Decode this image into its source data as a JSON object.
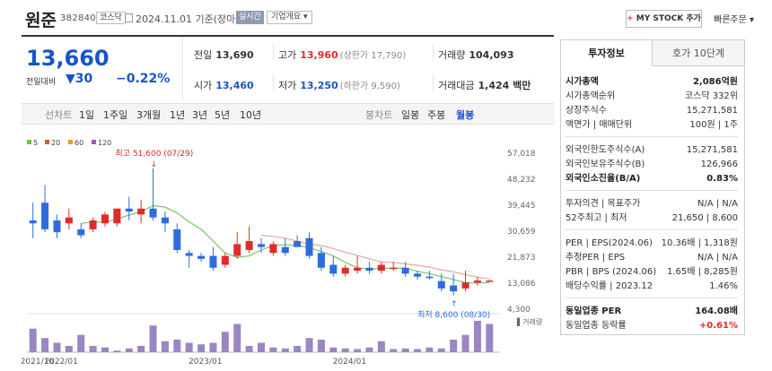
{
  "header": {
    "name": "원준",
    "code": "382840",
    "market": "코스닥",
    "date": "2024.11.01  기준(장마감)",
    "realtime": "실시간",
    "company": "기업개요",
    "mystock": "MY STOCK 추가",
    "quick_order": "빠른주문"
  },
  "price": {
    "current": "13,660",
    "diff_label": "전일대비",
    "diff_value": "▼30",
    "diff_pct": "−0.22%",
    "color": "#1855c6"
  },
  "quotes": {
    "prev_label": "전일",
    "prev": "13,690",
    "high_label": "고가",
    "high": "13,960",
    "upper": "(상한가 17,790)",
    "volume_label": "거래량",
    "volume": "104,093",
    "open_label": "시가",
    "open": "13,460",
    "low_label": "저가",
    "low": "13,250",
    "lower": "(하한가 9,590)",
    "amount_label": "거래대금",
    "amount": "1,424 백만"
  },
  "periods": {
    "line": "선차트",
    "d1": "1일",
    "w1": "1주일",
    "m3": "3개월",
    "y1": "1년",
    "y3": "3년",
    "y5": "5년",
    "y10": "10년",
    "candle": "봉차트",
    "daily": "일봉",
    "weekly": "주봉",
    "monthly": "월봉"
  },
  "tabs": {
    "invest": "투자정보",
    "hoga": "호가 10단계"
  },
  "info": {
    "mcap_label": "시가총액",
    "mcap": "2,086억원",
    "rank_label": "시가총액순위",
    "rank": "코스닥 332위",
    "shares_label": "상장주식수",
    "shares": "15,271,581",
    "face_label": "액면가 | 매매단위",
    "face": "100원 | 1주",
    "f_limit_label": "외국인한도주식수(A)",
    "f_limit": "15,271,581",
    "f_hold_label": "외국인보유주식수(B)",
    "f_hold": "126,966",
    "f_ratio_label": "외국인소진율(B/A)",
    "f_ratio": "0.83%",
    "opinion_label": "투자의견 | 목표주가",
    "opinion": "N/A | N/A",
    "w52_label": "52주최고 | 최저",
    "w52": "21,650 | 8,600",
    "per_label": "PER | EPS(2024.06)",
    "per": "10.36배 | 1,318원",
    "eper_label": "추정PER | EPS",
    "eper": "N/A | N/A",
    "pbr_label": "PBR | BPS (2024.06)",
    "pbr": "1.65배 | 8,285원",
    "div_label": "배당수익률 | 2023.12",
    "div": "1.46%",
    "ind_per_label": "동일업종 PER",
    "ind_per": "164.08배",
    "ind_chg_label": "동일업종 등락률",
    "ind_chg": "+0.61%"
  },
  "chart_data": {
    "type": "candlestick",
    "legend": [
      {
        "name": "5",
        "color": "#6cc24a"
      },
      {
        "name": "20",
        "color": "#e84c3d"
      },
      {
        "name": "60",
        "color": "#f39c12"
      },
      {
        "name": "120",
        "color": "#9b59b6"
      }
    ],
    "y_ticks": [
      "57,018",
      "48,232",
      "39,445",
      "30,659",
      "21,873",
      "13,086",
      "4,300"
    ],
    "ylim": [
      4300,
      57018
    ],
    "x_ticks": [
      {
        "label": "2021/10",
        "i": 0
      },
      {
        "label": "2022/01",
        "i": 2
      },
      {
        "label": "2023/01",
        "i": 14
      },
      {
        "label": "2024/01",
        "i": 26
      }
    ],
    "volume_label": "거래량",
    "high_note": "최고 51,600 (07/29)",
    "low_note": "최저 8,600 (08/30)",
    "candles": [
      {
        "o": 34000,
        "h": 40000,
        "l": 28000,
        "c": 33000
      },
      {
        "o": 40000,
        "h": 46000,
        "l": 30000,
        "c": 31000
      },
      {
        "o": 34000,
        "h": 36000,
        "l": 28000,
        "c": 30000
      },
      {
        "o": 33000,
        "h": 38000,
        "l": 31000,
        "c": 35000
      },
      {
        "o": 31000,
        "h": 33000,
        "l": 28000,
        "c": 29000
      },
      {
        "o": 31000,
        "h": 35000,
        "l": 30000,
        "c": 34000
      },
      {
        "o": 33000,
        "h": 37000,
        "l": 32000,
        "c": 36000
      },
      {
        "o": 33000,
        "h": 38000,
        "l": 32000,
        "c": 38000
      },
      {
        "o": 38000,
        "h": 42000,
        "l": 34000,
        "c": 37000
      },
      {
        "o": 36000,
        "h": 41000,
        "l": 33000,
        "c": 38000
      },
      {
        "o": 38000,
        "h": 51600,
        "l": 34000,
        "c": 35000
      },
      {
        "o": 35000,
        "h": 37000,
        "l": 30000,
        "c": 33000
      },
      {
        "o": 31000,
        "h": 33000,
        "l": 23000,
        "c": 24000
      },
      {
        "o": 23000,
        "h": 24000,
        "l": 18000,
        "c": 22000
      },
      {
        "o": 22000,
        "h": 23000,
        "l": 20000,
        "c": 21000
      },
      {
        "o": 22000,
        "h": 25000,
        "l": 17000,
        "c": 18000
      },
      {
        "o": 19000,
        "h": 23000,
        "l": 18000,
        "c": 22000
      },
      {
        "o": 22000,
        "h": 30000,
        "l": 21000,
        "c": 26000
      },
      {
        "o": 24000,
        "h": 32000,
        "l": 23000,
        "c": 27000
      },
      {
        "o": 26000,
        "h": 28000,
        "l": 23000,
        "c": 25000
      },
      {
        "o": 23000,
        "h": 27000,
        "l": 22000,
        "c": 26000
      },
      {
        "o": 25000,
        "h": 28000,
        "l": 22000,
        "c": 23000
      },
      {
        "o": 27000,
        "h": 29000,
        "l": 25000,
        "c": 25000
      },
      {
        "o": 28000,
        "h": 30000,
        "l": 21000,
        "c": 22000
      },
      {
        "o": 23000,
        "h": 25000,
        "l": 17000,
        "c": 18000
      },
      {
        "o": 19000,
        "h": 22000,
        "l": 15000,
        "c": 16000
      },
      {
        "o": 16000,
        "h": 19000,
        "l": 15000,
        "c": 18000
      },
      {
        "o": 17000,
        "h": 22000,
        "l": 16000,
        "c": 18000
      },
      {
        "o": 18000,
        "h": 20000,
        "l": 16000,
        "c": 17000
      },
      {
        "o": 17000,
        "h": 20000,
        "l": 16000,
        "c": 19000
      },
      {
        "o": 18000,
        "h": 20000,
        "l": 17000,
        "c": 18000
      },
      {
        "o": 18000,
        "h": 20000,
        "l": 15000,
        "c": 16000
      },
      {
        "o": 16000,
        "h": 17000,
        "l": 14000,
        "c": 15000
      },
      {
        "o": 15000,
        "h": 17000,
        "l": 14000,
        "c": 14500
      },
      {
        "o": 13500,
        "h": 16000,
        "l": 10000,
        "c": 11000
      },
      {
        "o": 12000,
        "h": 16000,
        "l": 8600,
        "c": 10000
      },
      {
        "o": 11000,
        "h": 17000,
        "l": 10000,
        "c": 13000
      },
      {
        "o": 13000,
        "h": 15000,
        "l": 12000,
        "c": 13700
      },
      {
        "o": 13460,
        "h": 13960,
        "l": 13250,
        "c": 13660
      }
    ],
    "volumes": [
      0.75,
      0.45,
      0.3,
      0.2,
      0.55,
      0.2,
      0.15,
      0.05,
      0.12,
      0.2,
      0.85,
      0.35,
      0.4,
      0.3,
      0.25,
      0.3,
      0.65,
      0.9,
      0.2,
      0.3,
      0.15,
      0.12,
      0.2,
      0.45,
      0.4,
      0.15,
      0.12,
      0.1,
      0.15,
      0.35,
      0.1,
      0.12,
      0.1,
      0.15,
      0.12,
      0.4,
      0.55,
      1.0,
      0.9
    ],
    "ma5": [
      null,
      null,
      null,
      null,
      33000,
      33500,
      33300,
      34500,
      35800,
      37000,
      39000,
      38500,
      36500,
      33500,
      31000,
      27000,
      23000,
      21500,
      22000,
      24000,
      25500,
      25800,
      25500,
      24800,
      23500,
      22000,
      19800,
      18000,
      17500,
      17800,
      17900,
      17800,
      16800,
      16000,
      15000,
      14000,
      13000,
      12800,
      13000
    ],
    "ma20": [
      null,
      null,
      null,
      null,
      null,
      null,
      null,
      null,
      null,
      null,
      null,
      null,
      null,
      null,
      null,
      null,
      null,
      null,
      null,
      29000,
      28600,
      28000,
      27000,
      26000,
      25500,
      24500,
      23200,
      22200,
      21000,
      20000,
      19800,
      19300,
      18800,
      18200,
      17300,
      16600,
      15700,
      14800,
      14200
    ]
  }
}
